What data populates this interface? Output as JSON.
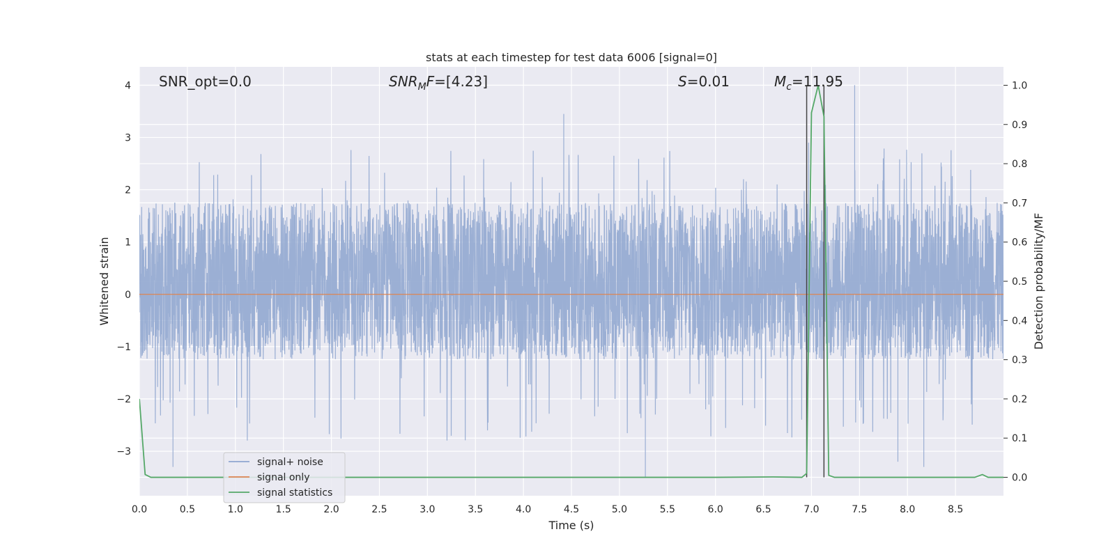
{
  "chart_data": {
    "type": "line",
    "title": "stats at each timestep for test data 6006 [signal=0]",
    "xlabel": "Time (s)",
    "ylabel": "Whitened strain",
    "y2label": "Detection probability/MF",
    "xlim": [
      0,
      9
    ],
    "ylim": [
      -3.85,
      4.35
    ],
    "y2lim": [
      -0.047,
      1.047
    ],
    "x_ticks": [
      "0.0",
      "0.5",
      "1.0",
      "1.5",
      "2.0",
      "2.5",
      "3.0",
      "3.5",
      "4.0",
      "4.5",
      "5.0",
      "5.5",
      "6.0",
      "6.5",
      "7.0",
      "7.5",
      "8.0",
      "8.5"
    ],
    "y_ticks": [
      "4",
      "3",
      "2",
      "1",
      "0",
      "−1",
      "−2",
      "−3"
    ],
    "y2_ticks": [
      "1.0",
      "0.9",
      "0.8",
      "0.7",
      "0.6",
      "0.5",
      "0.4",
      "0.3",
      "0.2",
      "0.1",
      "0.0"
    ],
    "grid": true,
    "legend_position": "lower-left",
    "annotations": {
      "snr_opt": "SNR_opt=0.0",
      "snr_mf_base": "SNR",
      "snr_mf_sub": "M",
      "snr_mf_f": "F",
      "snr_mf_value": "=[4.23]",
      "s_label": "S",
      "s_value": "=0.01",
      "mc_label": "M",
      "mc_sub": "c",
      "mc_value": "=11.95"
    },
    "vlines_x": [
      6.95,
      7.13
    ],
    "series": [
      {
        "name": "signal+ noise",
        "color": "#8fa6cf",
        "generated": true,
        "sample_rate": 500,
        "typical_range": [
          -1.25,
          1.75
        ],
        "extremes": [
          {
            "x": 0.35,
            "y": -3.3
          },
          {
            "x": 4.42,
            "y": 3.45
          },
          {
            "x": 5.27,
            "y": -3.5
          },
          {
            "x": 6.97,
            "y": 2.9
          },
          {
            "x": 7.45,
            "y": 4.0
          },
          {
            "x": 7.9,
            "y": -3.2
          },
          {
            "x": 8.17,
            "y": -3.3
          }
        ]
      },
      {
        "name": "signal only",
        "color": "#dd8452",
        "x": [
          0,
          9
        ],
        "y": [
          0,
          0
        ]
      },
      {
        "name": "signal statistics",
        "color": "#55a868",
        "axis": "right",
        "x": [
          0,
          0.06,
          0.12,
          0.18,
          1,
          2,
          3,
          4,
          5,
          6,
          6.6,
          6.9,
          6.95,
          7.0,
          7.07,
          7.13,
          7.18,
          7.24,
          7.5,
          8.0,
          8.7,
          8.78,
          8.84,
          9.0
        ],
        "y": [
          0.2,
          0.007,
          0.0,
          0.0,
          0.0,
          0.0,
          0.0,
          0.0,
          0.0,
          0.0,
          0.001,
          0.0,
          0.01,
          0.93,
          1.0,
          0.92,
          0.005,
          0.0,
          0.0,
          0.0,
          0.0,
          0.007,
          0.0,
          0.0
        ]
      }
    ]
  }
}
